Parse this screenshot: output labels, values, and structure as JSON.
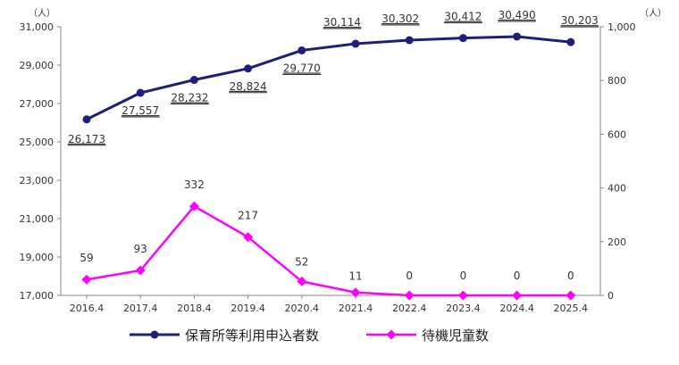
{
  "chart_data": {
    "type": "line",
    "categories": [
      "2016.4",
      "2017.4",
      "2018.4",
      "2019.4",
      "2020.4",
      "2021.4",
      "2022.4",
      "2023.4",
      "2024.4",
      "2025.4"
    ],
    "left_axis": {
      "unit": "（人）",
      "min": 17000,
      "max": 31000,
      "ticks": [
        17000,
        19000,
        21000,
        23000,
        25000,
        27000,
        29000,
        31000
      ],
      "tick_labels": [
        "17,000",
        "19,000",
        "21,000",
        "23,000",
        "25,000",
        "27,000",
        "29,000",
        "31,000"
      ]
    },
    "right_axis": {
      "unit": "（人）",
      "min": 0,
      "max": 1000,
      "ticks": [
        0,
        200,
        400,
        600,
        800,
        1000
      ],
      "tick_labels": [
        "0",
        "200",
        "400",
        "600",
        "800",
        "1,000"
      ]
    },
    "series": [
      {
        "name": "保育所等利用申込者数",
        "axis": "left",
        "color": "#1f1f7a",
        "marker": "circle",
        "values": [
          26173,
          27557,
          28232,
          28824,
          29770,
          30114,
          30302,
          30412,
          30490,
          30203
        ],
        "labels": [
          "26,173",
          "27,557",
          "28,232",
          "28,824",
          "29,770",
          "30,114",
          "30,302",
          "30,412",
          "30,490",
          "30,203"
        ]
      },
      {
        "name": "待機児童数",
        "axis": "right",
        "color": "#ff00ff",
        "marker": "diamond",
        "values": [
          59,
          93,
          332,
          217,
          52,
          11,
          0,
          0,
          0,
          0
        ],
        "labels": [
          "59",
          "93",
          "332",
          "217",
          "52",
          "11",
          "0",
          "0",
          "0",
          "0"
        ]
      }
    ],
    "legend": "bottom"
  }
}
